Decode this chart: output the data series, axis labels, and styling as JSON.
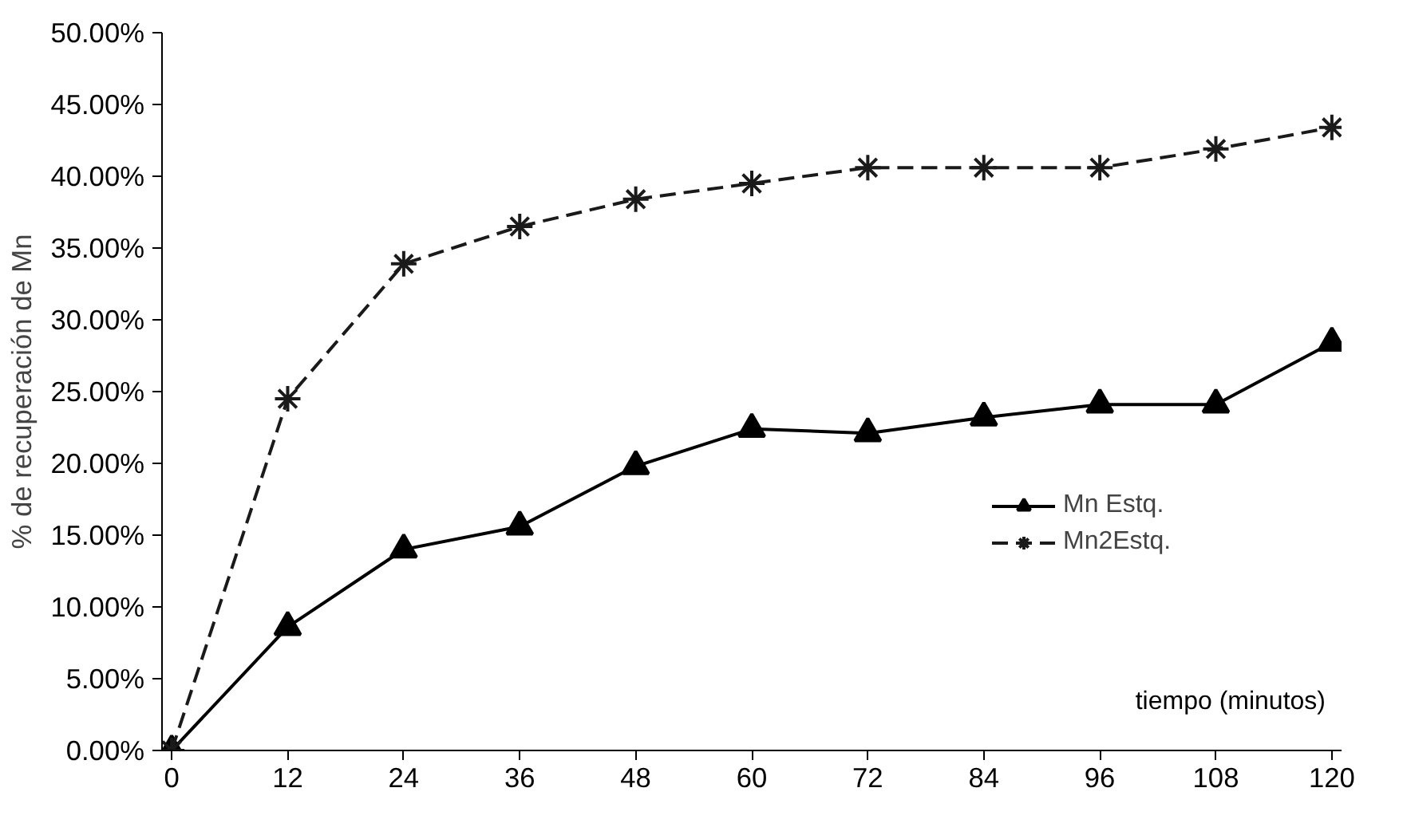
{
  "chart_data": {
    "type": "line",
    "x": [
      0,
      12,
      24,
      36,
      48,
      60,
      72,
      84,
      96,
      108,
      120
    ],
    "xlabel": "tiempo (minutos)",
    "ylabel": "% de recuperación de Mn",
    "series": [
      {
        "name": "Mn Estq.",
        "color": "#000000",
        "marker": "triangle",
        "line_style": "solid",
        "values": [
          0,
          0.086,
          0.14,
          0.156,
          0.198,
          0.224,
          0.221,
          0.232,
          0.241,
          0.241,
          0.284
        ]
      },
      {
        "name": "Mn2Estq.",
        "color": "#1a1a1a",
        "marker": "cross",
        "line_style": "dashed",
        "values": [
          0,
          0.245,
          0.339,
          0.365,
          0.384,
          0.395,
          0.406,
          0.406,
          0.406,
          0.419,
          0.434
        ]
      }
    ],
    "xlim": [
      -1,
      121
    ],
    "xticks": [
      0,
      12,
      24,
      36,
      48,
      60,
      72,
      84,
      96,
      108,
      120
    ],
    "ylim": [
      0,
      0.5
    ],
    "yticks": [
      {
        "value": 0,
        "label": "0.00%"
      },
      {
        "value": 0.05,
        "label": "5.00%"
      },
      {
        "value": 0.1,
        "label": "10.00%"
      },
      {
        "value": 0.15,
        "label": "15.00%"
      },
      {
        "value": 0.2,
        "label": "20.00%"
      },
      {
        "value": 0.25,
        "label": "25.00%"
      },
      {
        "value": 0.3,
        "label": "30.00%"
      },
      {
        "value": 0.35,
        "label": "35.00%"
      },
      {
        "value": 0.4,
        "label": "40.00%"
      },
      {
        "value": 0.45,
        "label": "45.00%"
      },
      {
        "value": 0.5,
        "label": "50.00%"
      }
    ],
    "grid": false,
    "legend": "right"
  }
}
